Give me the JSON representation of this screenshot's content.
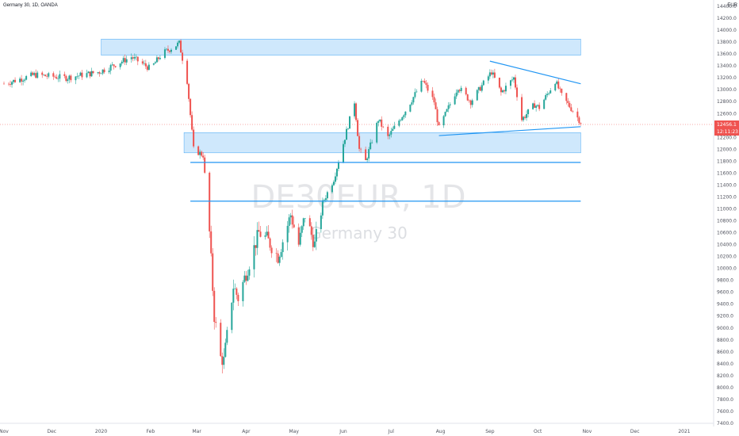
{
  "header": {
    "title": "Germany 30, 1D, OANDA",
    "currency": "EUR"
  },
  "watermark": {
    "symbol": "DE30EUR, 1D",
    "name": "Germany 30"
  },
  "colors": {
    "up": "#26a69a",
    "down": "#ef5350",
    "zone_fill": "#bbdefb",
    "zone_border": "#2196f3",
    "line": "#2196f3",
    "last_price_bg": "#ef5350"
  },
  "last_price": {
    "value": "12456.1",
    "countdown": "12:11:23"
  },
  "chart_data": {
    "type": "candlestick",
    "y_axis_ticks": [
      "14400.0",
      "14200.0",
      "14000.0",
      "13800.0",
      "13600.0",
      "13400.0",
      "13200.0",
      "13000.0",
      "12800.0",
      "12600.0",
      "12200.0",
      "12000.0",
      "11800.0",
      "11600.0",
      "11400.0",
      "11200.0",
      "11000.0",
      "10800.0",
      "10600.0",
      "10400.0",
      "10200.0",
      "10000.0",
      "9800.0",
      "9600.0",
      "9400.0",
      "9200.0",
      "9000.0",
      "8800.0",
      "8600.0",
      "8400.0",
      "8200.0",
      "8000.0",
      "7800.0",
      "7600.0",
      "7400.0"
    ],
    "x_axis_ticks": [
      {
        "label": "Nov",
        "date": "2019-11-01"
      },
      {
        "label": "Dec",
        "date": "2019-12-01"
      },
      {
        "label": "2020",
        "date": "2020-01-01"
      },
      {
        "label": "Feb",
        "date": "2020-02-01"
      },
      {
        "label": "Mar",
        "date": "2020-03-01"
      },
      {
        "label": "Apr",
        "date": "2020-04-01"
      },
      {
        "label": "May",
        "date": "2020-05-01"
      },
      {
        "label": "Jun",
        "date": "2020-06-01"
      },
      {
        "label": "Jul",
        "date": "2020-07-01"
      },
      {
        "label": "Aug",
        "date": "2020-08-01"
      },
      {
        "label": "Sep",
        "date": "2020-09-01"
      },
      {
        "label": "Oct",
        "date": "2020-10-01"
      },
      {
        "label": "Nov",
        "date": "2020-11-01"
      },
      {
        "label": "Dec",
        "date": "2020-12-01"
      },
      {
        "label": "2021",
        "date": "2021-01-01"
      }
    ],
    "y_range": [
      7400,
      14400
    ],
    "x_range": [
      "2019-11-01",
      "2021-01-01"
    ],
    "grid": false,
    "anchors": [
      [
        "2019-11-01",
        13100
      ],
      [
        "2019-11-20",
        13250
      ],
      [
        "2019-12-10",
        13200
      ],
      [
        "2019-12-31",
        13300
      ],
      [
        "2020-01-20",
        13550
      ],
      [
        "2020-02-01",
        13350
      ],
      [
        "2020-02-08",
        13600
      ],
      [
        "2020-02-19",
        13780
      ],
      [
        "2020-02-24",
        13150
      ],
      [
        "2020-02-28",
        12000
      ],
      [
        "2020-03-05",
        11900
      ],
      [
        "2020-03-09",
        10600
      ],
      [
        "2020-03-12",
        9200
      ],
      [
        "2020-03-16",
        8500
      ],
      [
        "2020-03-18",
        8450
      ],
      [
        "2020-03-24",
        9700
      ],
      [
        "2020-03-27",
        9500
      ],
      [
        "2020-04-09",
        10600
      ],
      [
        "2020-04-14",
        10500
      ],
      [
        "2020-04-21",
        10200
      ],
      [
        "2020-04-29",
        10900
      ],
      [
        "2020-05-04",
        10400
      ],
      [
        "2020-05-08",
        10900
      ],
      [
        "2020-05-14",
        10400
      ],
      [
        "2020-05-19",
        11100
      ],
      [
        "2020-05-26",
        11500
      ],
      [
        "2020-06-03",
        12300
      ],
      [
        "2020-06-08",
        12800
      ],
      [
        "2020-06-11",
        12000
      ],
      [
        "2020-06-15",
        11800
      ],
      [
        "2020-06-23",
        12500
      ],
      [
        "2020-06-29",
        12200
      ],
      [
        "2020-07-10",
        12650
      ],
      [
        "2020-07-21",
        13150
      ],
      [
        "2020-07-28",
        12800
      ],
      [
        "2020-07-31",
        12350
      ],
      [
        "2020-08-12",
        13050
      ],
      [
        "2020-08-20",
        12800
      ],
      [
        "2020-09-02",
        13300
      ],
      [
        "2020-09-08",
        12950
      ],
      [
        "2020-09-16",
        13200
      ],
      [
        "2020-09-21",
        12500
      ],
      [
        "2020-09-29",
        12750
      ],
      [
        "2020-10-02",
        12700
      ],
      [
        "2020-10-12",
        13150
      ],
      [
        "2020-10-16",
        12900
      ],
      [
        "2020-10-23",
        12650
      ],
      [
        "2020-10-28",
        12456
      ]
    ],
    "zones": [
      {
        "from": "2020-01-01",
        "to": "2020-10-28",
        "top": 13850,
        "bottom": 13580
      },
      {
        "from": "2020-02-22",
        "to": "2020-10-28",
        "top": 12280,
        "bottom": 11940
      }
    ],
    "lines": [
      {
        "x1": "2020-02-26",
        "y1": 11780,
        "x2": "2020-10-28",
        "y2": 11780
      },
      {
        "x1": "2020-02-26",
        "y1": 11130,
        "x2": "2020-10-28",
        "y2": 11130
      },
      {
        "x1": "2020-07-31",
        "y1": 12230,
        "x2": "2020-10-28",
        "y2": 12380
      },
      {
        "x1": "2020-09-01",
        "y1": 13480,
        "x2": "2020-10-28",
        "y2": 13100
      }
    ]
  }
}
